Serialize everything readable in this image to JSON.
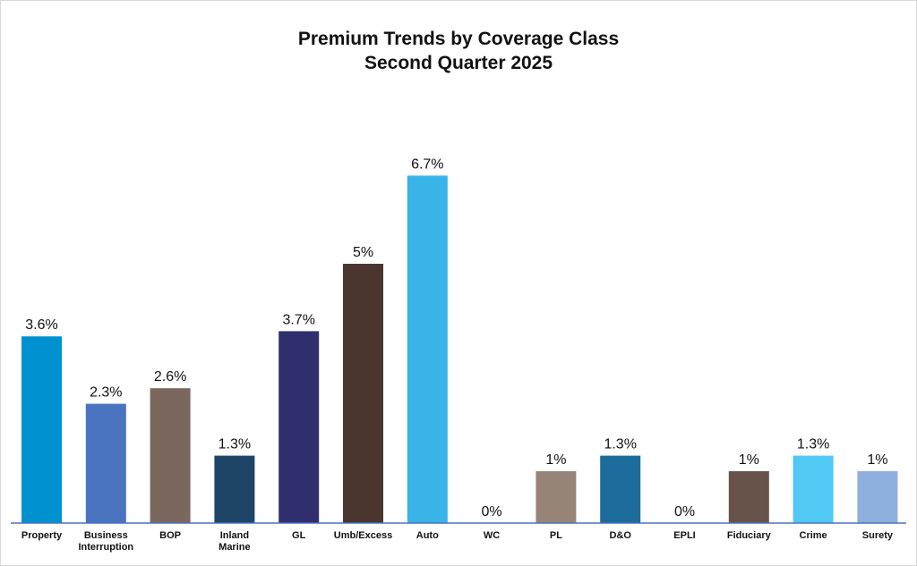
{
  "chart_data": {
    "type": "bar",
    "title": "Premium Trends by Coverage Class",
    "subtitle": "Second Quarter 2025",
    "categories": [
      [
        "Property"
      ],
      [
        "Business",
        "Interruption"
      ],
      [
        "BOP"
      ],
      [
        "Inland",
        "Marine"
      ],
      [
        "GL"
      ],
      [
        "Umb/Excess"
      ],
      [
        "Auto"
      ],
      [
        "WC"
      ],
      [
        "PL"
      ],
      [
        "D&O"
      ],
      [
        "EPLI"
      ],
      [
        "Fiduciary"
      ],
      [
        "Crime"
      ],
      [
        "Surety"
      ]
    ],
    "values": [
      3.6,
      2.3,
      2.6,
      1.3,
      3.7,
      5,
      6.7,
      0,
      1,
      1.3,
      0,
      1,
      1.3,
      1
    ],
    "data_labels": [
      "3.6%",
      "2.3%",
      "2.6%",
      "1.3%",
      "3.7%",
      "5%",
      "6.7%",
      "0%",
      "1%",
      "1.3%",
      "0%",
      "1%",
      "1.3%",
      "1%"
    ],
    "colors": [
      "#0091d0",
      "#4a74c0",
      "#7c675e",
      "#1e4568",
      "#312e6e",
      "#4a362f",
      "#3ab4e8",
      "#aaaaaa",
      "#978479",
      "#1c6b9b",
      "#aaaaaa",
      "#68534a",
      "#52c8f4",
      "#8eafdd"
    ],
    "axis_color": "#4a74c0",
    "ylim": [
      0,
      7
    ],
    "xlabel": "",
    "ylabel": "",
    "grid": false,
    "legend": "none"
  }
}
